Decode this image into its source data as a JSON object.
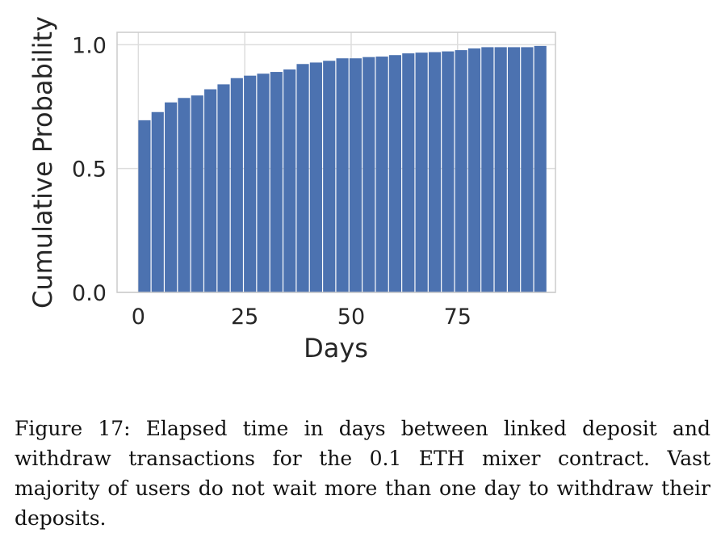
{
  "chart_data": {
    "type": "bar",
    "xlabel": "Days",
    "ylabel": "Cumulative Probability",
    "xlim": [
      -5,
      98
    ],
    "ylim": [
      0,
      1.05
    ],
    "x_ticks": [
      "0",
      "25",
      "50",
      "75"
    ],
    "x_tick_values": [
      0,
      25,
      50,
      75
    ],
    "y_ticks": [
      "0.0",
      "0.5",
      "1.0"
    ],
    "y_tick_values": [
      0.0,
      0.5,
      1.0
    ],
    "grid": true,
    "color": "#4c72b0",
    "bin_width": 3.1,
    "x": [
      0,
      3.1,
      6.2,
      9.3,
      12.4,
      15.5,
      18.6,
      21.7,
      24.8,
      27.9,
      31.0,
      34.1,
      37.2,
      40.3,
      43.4,
      46.5,
      49.6,
      52.7,
      55.8,
      58.9,
      62.0,
      65.1,
      68.2,
      71.3,
      74.4,
      77.5,
      80.6,
      83.7,
      86.8,
      89.9,
      93.0
    ],
    "values": [
      0.695,
      0.728,
      0.767,
      0.785,
      0.795,
      0.82,
      0.84,
      0.865,
      0.875,
      0.883,
      0.89,
      0.9,
      0.922,
      0.928,
      0.935,
      0.945,
      0.945,
      0.95,
      0.952,
      0.958,
      0.965,
      0.968,
      0.97,
      0.973,
      0.978,
      0.985,
      0.99,
      0.99,
      0.99,
      0.99,
      0.995
    ]
  },
  "caption": "Figure 17: Elapsed time in days between linked deposit and withdraw transactions for the 0.1 ETH mixer contract. Vast majority of users do not wait more than one day to withdraw their deposits."
}
